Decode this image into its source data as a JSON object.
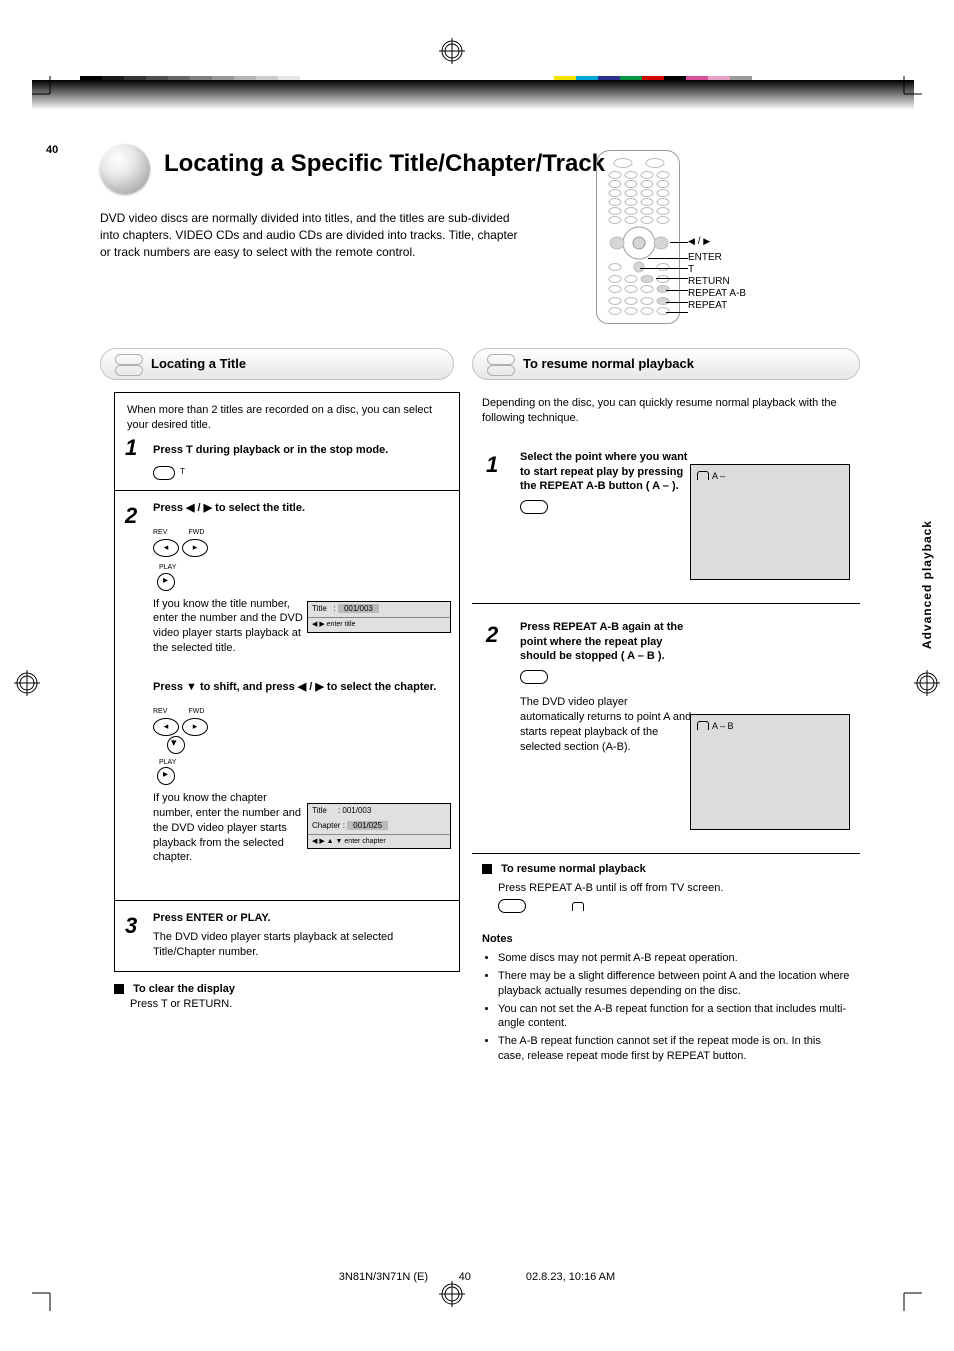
{
  "page_number": "40",
  "grayswatches": [
    "#000000",
    "#1a1a1a",
    "#333333",
    "#4d4d4d",
    "#666666",
    "#808080",
    "#999999",
    "#b3b3b3",
    "#cccccc",
    "#e6e6e6",
    "#ffffff"
  ],
  "colorswatches": [
    "#f4e300",
    "#00a6d6",
    "#2a2f8f",
    "#009640",
    "#d40000",
    "#000000",
    "#d94f9c",
    "#e9a0c8",
    "#9a9a9a"
  ],
  "sidebar_label": "Advanced playback",
  "title": "Locating a Specific Title/Chapter/Track",
  "subtitle": "DVD video discs are normally divided into titles, and the titles are sub-divided into chapters. VIDEO CDs and audio CDs are divided into tracks. Title, chapter or track numbers are easy to select with the remote control.",
  "remote_labels": {
    "arrows": "/   / ▲ / ▼",
    "arrows_prefix_left": "◀",
    "arrows_prefix_right": "▶",
    "enter": "ENTER",
    "t": "T",
    "return": "RETURN",
    "repab": "REPEAT A-B",
    "repeat": "REPEAT"
  },
  "pill_left": "Locating a Title",
  "pill_right": "To resume normal playback",
  "left_intro": "When more than 2 titles are recorded on a disc, you can select your desired title.",
  "step1": {
    "num": "1",
    "text_a": "Press T during playback or in the stop mode.",
    "btn_label": "T"
  },
  "step2": {
    "num": "2",
    "head": "Press ◀ / ▶ to select the title.",
    "btn_rev": "REV",
    "btn_fwd": "FWD",
    "btn_play": "PLAY",
    "line2": "If you know the title number, enter the number and the DVD video player starts playback at the selected title.",
    "osd": {
      "row_label": "Title",
      "row_val": "001/003",
      "ft": "◀ ▶  enter title"
    },
    "head3": "Press ▼ to shift, and press ◀ / ▶ to select the chapter.",
    "line3": "If you know the chapter number, enter the number and the DVD video player starts playback from the selected chapter.",
    "osd2": {
      "r1l": "Title",
      "r1v": "001/003",
      "r2l": "Chapter",
      "r2v": "001/025",
      "ft": "◀ ▶ ▲ ▼  enter chapter"
    }
  },
  "step3": {
    "num": "3",
    "text": "Press ENTER or PLAY.",
    "sub": "The DVD video player starts playback at selected Title/Chapter number."
  },
  "left_foot_head": "To clear the display",
  "left_foot_body": "Press T or RETURN.",
  "right_intro": "Depending on the disc, you can quickly resume normal playback with the following technique.",
  "r1": {
    "num": "1",
    "body": "Select the point where you want to start repeat play by pressing the REPEAT A-B button ( A – ).",
    "screen_text": "A –"
  },
  "r2": {
    "num": "2",
    "body1": "Press REPEAT A-B again at the point where the repeat play should be stopped ( A – B ).",
    "body2": "The DVD video player automatically returns to point A and starts repeat playback of the selected section (A-B).",
    "screen_text": "A – B"
  },
  "resume_head": "To resume normal playback",
  "resume_body": "Press REPEAT A-B until             is off from TV screen.",
  "notes_head": "Notes",
  "notes": [
    "Some discs may not permit A-B repeat operation.",
    "There may be a slight difference between point A and the location where playback actually resumes depending on the disc.",
    "You can not set the A-B repeat function for a section that includes multi-angle content.",
    "The A-B repeat function cannot set if the repeat mode is on. In this case, release repeat mode first by REPEAT button."
  ],
  "footer_text": "3N81N/3N71N (E)",
  "footer_page": "40",
  "footer_meta": "02.8.23, 10:16 AM"
}
